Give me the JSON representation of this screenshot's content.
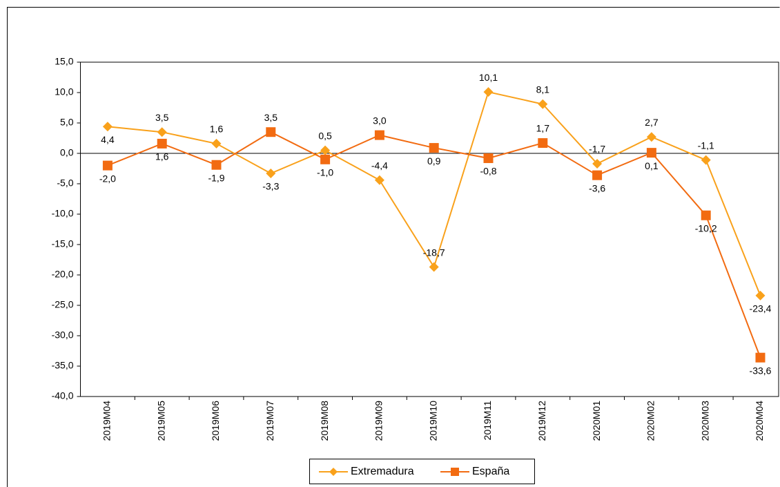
{
  "chart_data": {
    "type": "line",
    "categories": [
      "2019M04",
      "2019M05",
      "2019M06",
      "2019M07",
      "2019M08",
      "2019M09",
      "2019M10",
      "2019M11",
      "2019M12",
      "2020M01",
      "2020M02",
      "2020M03",
      "2020M04"
    ],
    "series": [
      {
        "name": "Extremadura",
        "color": "#f9a11b",
        "marker": "diamond",
        "values": [
          4.4,
          3.5,
          1.6,
          -3.3,
          0.5,
          -4.4,
          -18.7,
          10.1,
          8.1,
          -1.7,
          2.7,
          -1.1,
          -23.4
        ],
        "value_labels": [
          "4,4",
          "3,5",
          "1,6",
          "-3,3",
          "0,5",
          "-4,4",
          "-18,7",
          "10,1",
          "8,1",
          "-1,7",
          "2,7",
          "-1,1",
          "-23,4"
        ]
      },
      {
        "name": "España",
        "color": "#f26b11",
        "marker": "square",
        "values": [
          -2.0,
          1.6,
          -1.9,
          3.5,
          -1.0,
          3.0,
          0.9,
          -0.8,
          1.7,
          -3.6,
          0.1,
          -10.2,
          -33.6
        ],
        "value_labels": [
          "-2,0",
          "1,6",
          "-1,9",
          "3,5",
          "-1,0",
          "3,0",
          "0,9",
          "-0,8",
          "1,7",
          "-3,6",
          "0,1",
          "-10,2",
          "-33,6"
        ]
      }
    ],
    "ylim": [
      -40,
      15
    ],
    "yticks": [
      {
        "value": 15,
        "label": "15,0"
      },
      {
        "value": 10,
        "label": "10,0"
      },
      {
        "value": 5,
        "label": "5,0"
      },
      {
        "value": 0,
        "label": "0,0"
      },
      {
        "value": -5,
        "label": "-5,0"
      },
      {
        "value": -10,
        "label": "-10,0"
      },
      {
        "value": -15,
        "label": "-15,0"
      },
      {
        "value": -20,
        "label": "-20,0"
      },
      {
        "value": -25,
        "label": "-25,0"
      },
      {
        "value": -30,
        "label": "-30,0"
      },
      {
        "value": -35,
        "label": "-35,0"
      },
      {
        "value": -40,
        "label": "-40,0"
      }
    ],
    "legend": "bottom"
  }
}
